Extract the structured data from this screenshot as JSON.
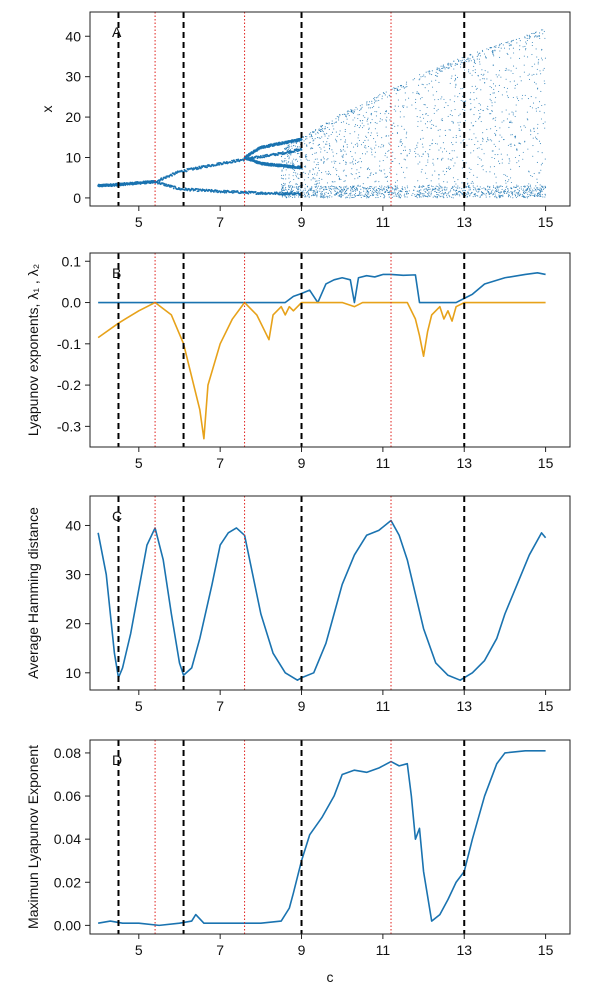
{
  "colors": {
    "series_blue": "#1a73b0",
    "series_orange": "#e7a21a",
    "black_lines": "#000000",
    "red_lines": "#e0201b"
  },
  "x_axis": {
    "label": "c",
    "ticks": [
      5,
      7,
      9,
      11,
      13,
      15
    ],
    "xlim": [
      3.8,
      15.6
    ]
  },
  "vertical_lines": {
    "black_dashed": [
      4.5,
      6.1,
      9.0,
      13.0
    ],
    "red_dotted": [
      5.4,
      7.6,
      11.2
    ]
  },
  "chart_data": [
    {
      "type": "scatter",
      "panel": "A",
      "ylabel": "x",
      "ylim": [
        -2,
        46
      ],
      "yticks": [
        "0",
        "10",
        "20",
        "30",
        "40"
      ],
      "ytick_values": [
        0,
        10,
        20,
        30,
        40
      ],
      "description_series": "bifurcation diagram (dense points)",
      "branches": [
        {
          "x": [
            4.0,
            4.5,
            5.0,
            5.4
          ],
          "y": [
            3.0,
            3.3,
            3.7,
            4.0
          ]
        },
        {
          "x": [
            5.4,
            6.0,
            7.0,
            8.0,
            8.5,
            9.0
          ],
          "y": [
            4.0,
            6.5,
            8.5,
            10.2,
            11.0,
            12.0
          ]
        },
        {
          "x": [
            5.4,
            6.0,
            7.0,
            8.0,
            8.5,
            9.0
          ],
          "y": [
            4.0,
            2.2,
            1.6,
            1.2,
            1.1,
            1.0
          ]
        },
        {
          "x": [
            7.6,
            8.0,
            8.5,
            9.0
          ],
          "y": [
            10.0,
            12.5,
            13.5,
            14.5
          ]
        },
        {
          "x": [
            7.6,
            8.0,
            8.5,
            9.0
          ],
          "y": [
            10.0,
            8.5,
            8.0,
            7.5
          ]
        }
      ],
      "chaos_region": {
        "x_start": 8.5,
        "x_end": 15.0,
        "y_min": 0.0,
        "upper_envelope": [
          [
            8.5,
            12
          ],
          [
            9,
            15
          ],
          [
            10,
            21
          ],
          [
            11,
            26
          ],
          [
            12,
            31
          ],
          [
            13,
            35
          ],
          [
            14,
            38.5
          ],
          [
            15,
            42
          ]
        ]
      }
    },
    {
      "type": "line",
      "panel": "B",
      "ylabel": "Lyapunov exponents, λ₁ , λ₂",
      "ylim": [
        -0.35,
        0.12
      ],
      "yticks": [
        "-0.3",
        "-0.2",
        "-0.1",
        "0.0",
        "0.1"
      ],
      "ytick_values": [
        -0.3,
        -0.2,
        -0.1,
        0.0,
        0.1
      ],
      "series": [
        {
          "color": "#1a73b0",
          "x": [
            4.0,
            5.0,
            6.0,
            7.0,
            8.0,
            8.6,
            8.8,
            9.0,
            9.2,
            9.4,
            9.6,
            9.8,
            10.0,
            10.2,
            10.3,
            10.4,
            10.6,
            10.8,
            11.0,
            11.2,
            11.5,
            11.8,
            11.9,
            12.5,
            12.8,
            13.0,
            13.2,
            13.5,
            14.0,
            14.5,
            14.8,
            15.0
          ],
          "y": [
            0.0,
            0.0,
            0.0,
            0.0,
            0.0,
            0.0,
            0.015,
            0.022,
            0.03,
            0.0,
            0.045,
            0.055,
            0.06,
            0.055,
            0.0,
            0.06,
            0.065,
            0.062,
            0.068,
            0.068,
            0.066,
            0.067,
            0.0,
            0.0,
            0.0,
            0.01,
            0.02,
            0.045,
            0.06,
            0.068,
            0.072,
            0.068
          ]
        },
        {
          "color": "#e7a21a",
          "x": [
            4.0,
            4.5,
            5.0,
            5.4,
            5.8,
            6.1,
            6.3,
            6.5,
            6.6,
            6.7,
            7.0,
            7.3,
            7.6,
            7.9,
            8.1,
            8.2,
            8.3,
            8.5,
            8.6,
            8.7,
            8.8,
            9.0,
            9.5,
            10.0,
            10.3,
            10.5,
            11.0,
            11.6,
            11.8,
            11.9,
            12.0,
            12.1,
            12.2,
            12.4,
            12.5,
            12.6,
            12.7,
            12.8,
            13.0,
            14.0,
            15.0
          ],
          "y": [
            -0.085,
            -0.05,
            -0.02,
            0.0,
            -0.03,
            -0.1,
            -0.18,
            -0.26,
            -0.33,
            -0.2,
            -0.1,
            -0.04,
            0.0,
            -0.03,
            -0.07,
            -0.09,
            -0.03,
            -0.01,
            -0.03,
            -0.01,
            -0.02,
            0.0,
            0.0,
            0.0,
            -0.01,
            0.0,
            0.0,
            0.0,
            -0.04,
            -0.08,
            -0.13,
            -0.07,
            -0.03,
            -0.01,
            -0.04,
            -0.02,
            -0.045,
            -0.01,
            0.0,
            0.0,
            0.0
          ]
        }
      ]
    },
    {
      "type": "line",
      "panel": "C",
      "ylabel": "Average Hamming distance",
      "ylim": [
        6.5,
        46
      ],
      "yticks": [
        "10",
        "20",
        "30",
        "40"
      ],
      "ytick_values": [
        10,
        20,
        30,
        40
      ],
      "series": [
        {
          "color": "#1a73b0",
          "x": [
            4.0,
            4.2,
            4.4,
            4.5,
            4.6,
            4.8,
            5.0,
            5.2,
            5.4,
            5.6,
            5.8,
            6.0,
            6.1,
            6.3,
            6.5,
            6.8,
            7.0,
            7.2,
            7.4,
            7.6,
            7.8,
            8.0,
            8.3,
            8.6,
            8.9,
            9.0,
            9.3,
            9.6,
            9.8,
            10.0,
            10.3,
            10.6,
            10.9,
            11.2,
            11.4,
            11.6,
            11.8,
            12.0,
            12.3,
            12.6,
            12.9,
            13.0,
            13.2,
            13.5,
            13.8,
            14.0,
            14.3,
            14.6,
            14.9,
            15.0
          ],
          "y": [
            38.5,
            30.0,
            14.0,
            9.0,
            11.0,
            18.0,
            27.0,
            36.0,
            39.5,
            33.0,
            22.0,
            12.0,
            9.5,
            11.0,
            17.0,
            28.0,
            36.0,
            38.5,
            39.5,
            38.0,
            30.0,
            22.0,
            14.0,
            10.0,
            8.5,
            9.0,
            10.0,
            16.0,
            22.0,
            28.0,
            34.0,
            38.0,
            39.0,
            41.0,
            38.0,
            33.0,
            26.0,
            19.0,
            12.0,
            9.5,
            8.5,
            9.0,
            10.0,
            12.5,
            17.0,
            22.0,
            28.0,
            34.0,
            38.5,
            37.5
          ]
        }
      ]
    },
    {
      "type": "line",
      "panel": "D",
      "ylabel": "Maximun Lyapunov Exponent",
      "ylim": [
        -0.004,
        0.086
      ],
      "yticks": [
        "0.00",
        "0.02",
        "0.04",
        "0.06",
        "0.08"
      ],
      "ytick_values": [
        0.0,
        0.02,
        0.04,
        0.06,
        0.08
      ],
      "series": [
        {
          "color": "#1a73b0",
          "x": [
            4.0,
            4.3,
            4.6,
            5.0,
            5.5,
            6.0,
            6.3,
            6.4,
            6.6,
            7.0,
            7.5,
            8.0,
            8.5,
            8.7,
            8.8,
            9.0,
            9.2,
            9.5,
            9.8,
            10.0,
            10.3,
            10.6,
            10.9,
            11.2,
            11.4,
            11.6,
            11.7,
            11.8,
            11.9,
            12.0,
            12.2,
            12.4,
            12.6,
            12.8,
            13.0,
            13.2,
            13.5,
            13.8,
            14.0,
            14.5,
            15.0
          ],
          "y": [
            0.001,
            0.002,
            0.001,
            0.001,
            0.0,
            0.001,
            0.002,
            0.005,
            0.001,
            0.001,
            0.001,
            0.001,
            0.002,
            0.008,
            0.015,
            0.03,
            0.042,
            0.05,
            0.06,
            0.07,
            0.072,
            0.071,
            0.073,
            0.076,
            0.074,
            0.075,
            0.06,
            0.04,
            0.045,
            0.025,
            0.002,
            0.005,
            0.012,
            0.02,
            0.025,
            0.04,
            0.06,
            0.075,
            0.08,
            0.081,
            0.081
          ]
        }
      ]
    }
  ]
}
